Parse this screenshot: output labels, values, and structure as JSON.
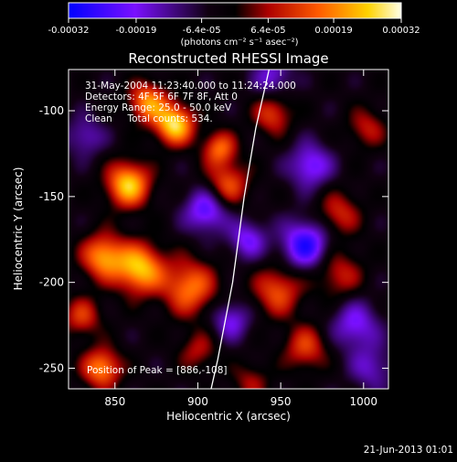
{
  "chart_data": {
    "type": "heatmap",
    "title": "Reconstructed RHESSI Image",
    "xlabel": "Heliocentric X (arcsec)",
    "ylabel": "Heliocentric Y (arcsec)",
    "xlim": [
      822,
      1015
    ],
    "ylim": [
      -262,
      -76
    ],
    "xticks": [
      850,
      900,
      950,
      1000
    ],
    "yticks": [
      -100,
      -150,
      -200,
      -250
    ],
    "colorbar": {
      "ticks": [
        -0.00032,
        -0.00019,
        -6.4e-05,
        6.4e-05,
        0.00019,
        0.00032
      ],
      "tick_labels": [
        "-0.00032",
        "-0.00019",
        "-6.4e-05",
        "6.4e-05",
        "0.00019",
        "0.00032"
      ],
      "unit": "(photons cm⁻² s⁻¹ asec⁻²)",
      "range": [
        -0.00032,
        0.00032
      ]
    },
    "annotations": {
      "time": "31-May-2004 11:23:40.000 to 11:24:24.000",
      "detectors": "Detectors: 4F 5F 6F 7F 8F, Att 0",
      "energy": "Energy Range: 25.0 - 50.0 keV",
      "clean": "Clean     Total counts: 534.",
      "peak": "Position of Peak = [886,-108]"
    },
    "footer_date": "21-Jun-2013 01:01",
    "limb_curve": [
      [
        943,
        -76
      ],
      [
        935,
        -110
      ],
      [
        928,
        -150
      ],
      [
        921,
        -200
      ],
      [
        912,
        -245
      ],
      [
        908,
        -262
      ]
    ],
    "sources": [
      {
        "x": 886,
        "y": -108,
        "amp": 0.00032,
        "s": 8
      },
      {
        "x": 858,
        "y": -143,
        "amp": 0.0003,
        "s": 9
      },
      {
        "x": 865,
        "y": -192,
        "amp": 0.00029,
        "s": 10
      },
      {
        "x": 843,
        "y": -185,
        "amp": 0.00025,
        "s": 9
      },
      {
        "x": 870,
        "y": -95,
        "amp": 0.00024,
        "s": 8
      },
      {
        "x": 895,
        "y": -203,
        "amp": 0.00022,
        "s": 11
      },
      {
        "x": 842,
        "y": -250,
        "amp": 0.00024,
        "s": 8
      },
      {
        "x": 913,
        "y": -122,
        "amp": 0.0002,
        "s": 7
      },
      {
        "x": 918,
        "y": -143,
        "amp": 0.00018,
        "s": 9
      },
      {
        "x": 945,
        "y": -102,
        "amp": 0.00016,
        "s": 8
      },
      {
        "x": 948,
        "y": -205,
        "amp": 0.00018,
        "s": 10
      },
      {
        "x": 965,
        "y": -238,
        "amp": 0.00016,
        "s": 9
      },
      {
        "x": 985,
        "y": -160,
        "amp": 0.00014,
        "s": 9
      },
      {
        "x": 1002,
        "y": -110,
        "amp": 0.00012,
        "s": 8
      },
      {
        "x": 985,
        "y": -195,
        "amp": 0.00013,
        "s": 10
      },
      {
        "x": 900,
        "y": -240,
        "amp": 0.00011,
        "s": 8
      },
      {
        "x": 932,
        "y": -258,
        "amp": 0.0001,
        "s": 8
      },
      {
        "x": 830,
        "y": -220,
        "amp": 0.00015,
        "s": 8
      },
      {
        "x": 965,
        "y": -178,
        "amp": -0.00024,
        "s": 10
      },
      {
        "x": 905,
        "y": -158,
        "amp": -0.0002,
        "s": 9
      },
      {
        "x": 968,
        "y": -132,
        "amp": -0.00018,
        "s": 9
      },
      {
        "x": 930,
        "y": -175,
        "amp": -0.00016,
        "s": 8
      },
      {
        "x": 945,
        "y": -80,
        "amp": -0.00014,
        "s": 8
      },
      {
        "x": 995,
        "y": -225,
        "amp": -0.00016,
        "s": 10
      },
      {
        "x": 832,
        "y": -115,
        "amp": -0.00012,
        "s": 8
      },
      {
        "x": 920,
        "y": -222,
        "amp": -0.00015,
        "s": 8
      },
      {
        "x": 1005,
        "y": -250,
        "amp": -0.00012,
        "s": 9
      }
    ]
  }
}
